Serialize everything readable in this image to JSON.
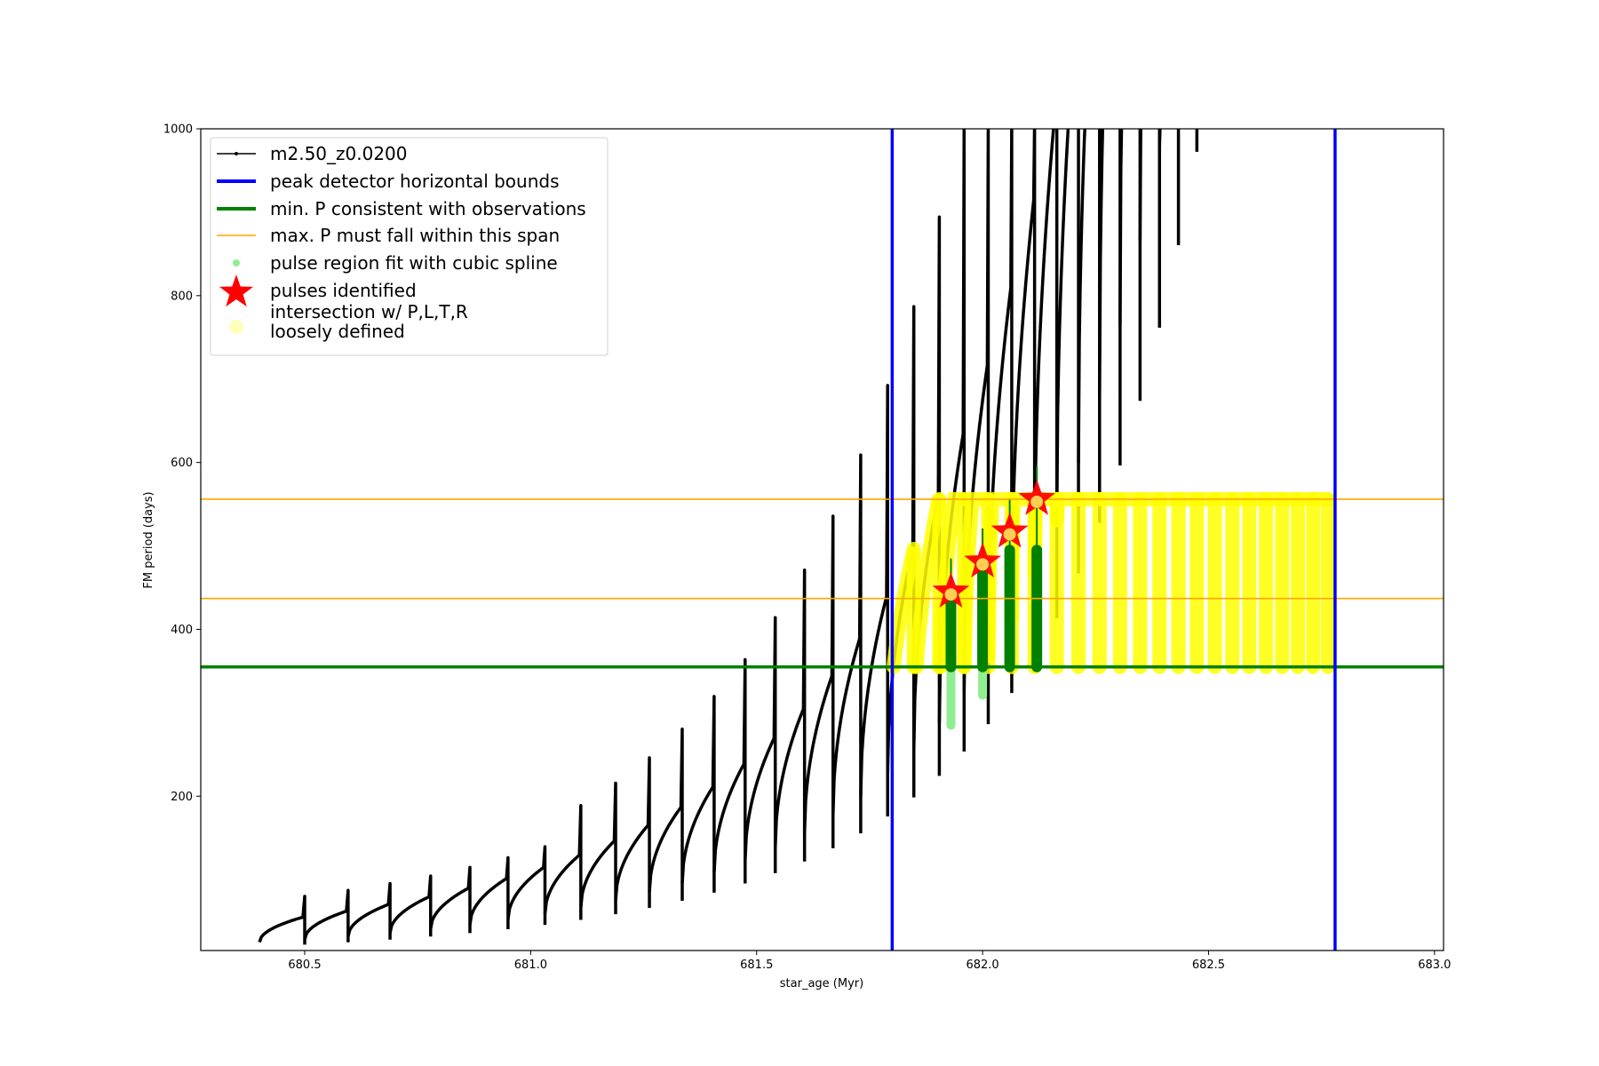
{
  "chart_data": {
    "type": "line",
    "title": "",
    "xlabel": "star_age (Myr)",
    "ylabel": "FM period (days)",
    "xlim": [
      680.27,
      683.02
    ],
    "ylim": [
      15,
      1000
    ],
    "x_ticks": [
      680.5,
      681.0,
      681.5,
      682.0,
      682.5,
      683.0
    ],
    "x_tick_labels": [
      "680.5",
      "681.0",
      "681.5",
      "682.0",
      "682.5",
      "683.0"
    ],
    "y_ticks": [
      200,
      400,
      600,
      800,
      1000
    ],
    "y_tick_labels": [
      "200",
      "400",
      "600",
      "800",
      "1000"
    ],
    "grid": false,
    "legend_position": "upper-left",
    "legend": [
      {
        "key": "track",
        "label": "m2.50_z0.0200",
        "color": "#000000",
        "marker": "line-dot"
      },
      {
        "key": "peak",
        "label": "peak detector horizontal bounds",
        "color": "#0000ff",
        "marker": "thick-line"
      },
      {
        "key": "minp",
        "label": "min. P consistent with observations",
        "color": "#008000",
        "marker": "thick-line"
      },
      {
        "key": "maxp",
        "label": "max. P must fall within this span",
        "color": "#ffa500",
        "marker": "thin-line"
      },
      {
        "key": "spline",
        "label": "pulse region fit with cubic spline",
        "color": "#90ee90",
        "marker": "dot"
      },
      {
        "key": "pulses",
        "label": "pulses identified",
        "color": "#ff0000",
        "marker": "star"
      },
      {
        "key": "intersect",
        "label": "intersection w/ P,L,T,R\nloosely defined",
        "color": "#ffff66",
        "marker": "circle"
      }
    ],
    "peak_detector_bounds_x": [
      681.8,
      682.78
    ],
    "min_period_consistent": 355,
    "max_period_span": [
      437,
      556
    ],
    "pulses_identified": [
      {
        "x": 681.93,
        "y": 445
      },
      {
        "x": 682.0,
        "y": 481
      },
      {
        "x": 682.06,
        "y": 517
      },
      {
        "x": 682.12,
        "y": 556
      }
    ],
    "track_cycles": {
      "start_age": 680.4,
      "interval_start": 0.1,
      "interval_end": 0.03,
      "start_base_period": 25,
      "start_top_period": 55,
      "growth_rate": 1.13,
      "end_age": 682.85
    }
  }
}
